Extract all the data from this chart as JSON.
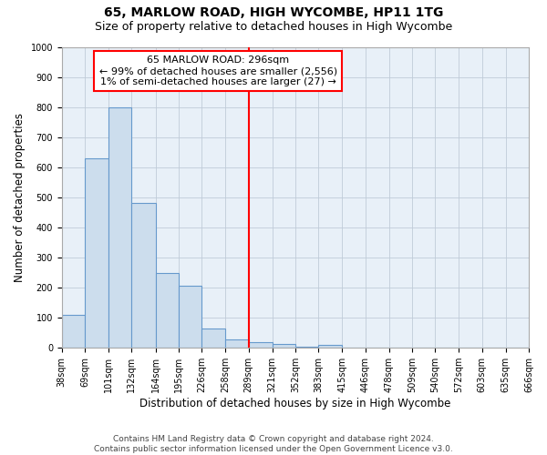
{
  "title": "65, MARLOW ROAD, HIGH WYCOMBE, HP11 1TG",
  "subtitle": "Size of property relative to detached houses in High Wycombe",
  "xlabel": "Distribution of detached houses by size in High Wycombe",
  "ylabel": "Number of detached properties",
  "bar_edges": [
    38,
    69,
    101,
    132,
    164,
    195,
    226,
    258,
    289,
    321,
    352,
    383,
    415,
    446,
    478,
    509,
    540,
    572,
    603,
    635,
    666
  ],
  "bar_heights": [
    110,
    630,
    800,
    480,
    250,
    205,
    65,
    27,
    20,
    13,
    5,
    10,
    0,
    0,
    0,
    0,
    0,
    0,
    0,
    0,
    0
  ],
  "bar_color": "#ccdded",
  "bar_edgecolor": "#6699cc",
  "vline_x": 289,
  "vline_color": "red",
  "annotation_text": "65 MARLOW ROAD: 296sqm\n← 99% of detached houses are smaller (2,556)\n1% of semi-detached houses are larger (27) →",
  "annotation_box_color": "white",
  "annotation_box_edgecolor": "red",
  "ylim": [
    0,
    1000
  ],
  "xlim": [
    38,
    666
  ],
  "yticks": [
    0,
    100,
    200,
    300,
    400,
    500,
    600,
    700,
    800,
    900,
    1000
  ],
  "xtick_labels": [
    "38sqm",
    "69sqm",
    "101sqm",
    "132sqm",
    "164sqm",
    "195sqm",
    "226sqm",
    "258sqm",
    "289sqm",
    "321sqm",
    "352sqm",
    "383sqm",
    "415sqm",
    "446sqm",
    "478sqm",
    "509sqm",
    "540sqm",
    "572sqm",
    "603sqm",
    "635sqm",
    "666sqm"
  ],
  "xtick_positions": [
    38,
    69,
    101,
    132,
    164,
    195,
    226,
    258,
    289,
    321,
    352,
    383,
    415,
    446,
    478,
    509,
    540,
    572,
    603,
    635,
    666
  ],
  "grid_color": "#c0ccd8",
  "bg_color": "#e8f0f8",
  "footer": "Contains HM Land Registry data © Crown copyright and database right 2024.\nContains public sector information licensed under the Open Government Licence v3.0.",
  "title_fontsize": 10,
  "subtitle_fontsize": 9,
  "axis_label_fontsize": 8.5,
  "tick_fontsize": 7,
  "footer_fontsize": 6.5
}
